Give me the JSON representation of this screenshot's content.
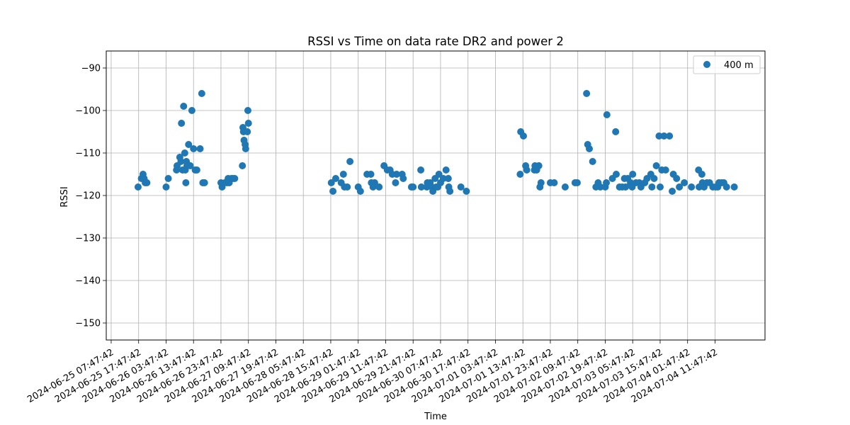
{
  "chart_data": {
    "type": "scatter",
    "title": "RSSI vs Time on data rate DR2 and power 2",
    "xlabel": "Time",
    "ylabel": "RSSI",
    "x_is_date": true,
    "xlim": [
      "2024-06-25T06:00",
      "2024-07-05T06:00"
    ],
    "ylim": [
      -154,
      -86
    ],
    "grid": true,
    "legend_position": "top-right",
    "x_ticks": [
      "2024-06-25 07:47:42",
      "2024-06-25 17:47:42",
      "2024-06-26 03:47:42",
      "2024-06-26 13:47:42",
      "2024-06-26 23:47:42",
      "2024-06-27 09:47:42",
      "2024-06-27 19:47:42",
      "2024-06-28 05:47:42",
      "2024-06-28 15:47:42",
      "2024-06-29 01:47:42",
      "2024-06-29 11:47:42",
      "2024-06-29 21:47:42",
      "2024-06-30 07:47:42",
      "2024-06-30 17:47:42",
      "2024-07-01 03:47:42",
      "2024-07-01 13:47:42",
      "2024-07-01 23:47:42",
      "2024-07-02 09:47:42",
      "2024-07-02 19:47:42",
      "2024-07-03 05:47:42",
      "2024-07-03 15:47:42",
      "2024-07-04 01:47:42",
      "2024-07-04 11:47:42"
    ],
    "y_ticks": [
      -150,
      -140,
      -130,
      -120,
      -110,
      -100,
      -90
    ],
    "y_tick_labels": [
      "−150",
      "−140",
      "−130",
      "−120",
      "−110",
      "−100",
      "−90"
    ],
    "series": [
      {
        "name": "400 m",
        "color": "#1f77b4",
        "marker": "circle",
        "points": [
          [
            "2024-06-25T17:36",
            -118
          ],
          [
            "2024-06-25T18:48",
            -116
          ],
          [
            "2024-06-25T19:24",
            -115
          ],
          [
            "2024-06-25T19:48",
            -116
          ],
          [
            "2024-06-25T20:12",
            -117
          ],
          [
            "2024-06-25T20:48",
            -117
          ],
          [
            "2024-06-26T03:48",
            -118
          ],
          [
            "2024-06-26T04:36",
            -116
          ],
          [
            "2024-06-26T07:36",
            -114
          ],
          [
            "2024-06-26T07:48",
            -113
          ],
          [
            "2024-06-26T08:48",
            -111
          ],
          [
            "2024-06-26T09:12",
            -112
          ],
          [
            "2024-06-26T09:24",
            -103
          ],
          [
            "2024-06-26T09:48",
            -114
          ],
          [
            "2024-06-26T10:12",
            -99
          ],
          [
            "2024-06-26T10:36",
            -110
          ],
          [
            "2024-06-26T10:48",
            -114
          ],
          [
            "2024-06-26T11:00",
            -117
          ],
          [
            "2024-06-26T11:12",
            -112
          ],
          [
            "2024-06-26T11:24",
            -113
          ],
          [
            "2024-06-26T11:36",
            -113
          ],
          [
            "2024-06-26T12:00",
            -108
          ],
          [
            "2024-06-26T12:36",
            -113
          ],
          [
            "2024-06-26T13:12",
            -100
          ],
          [
            "2024-06-26T13:48",
            -109
          ],
          [
            "2024-06-26T14:24",
            -114
          ],
          [
            "2024-06-26T15:00",
            -114
          ],
          [
            "2024-06-26T16:12",
            -109
          ],
          [
            "2024-06-26T16:48",
            -96
          ],
          [
            "2024-06-26T17:12",
            -117
          ],
          [
            "2024-06-26T17:48",
            -117
          ],
          [
            "2024-06-26T23:48",
            -117
          ],
          [
            "2024-06-27T00:12",
            -118
          ],
          [
            "2024-06-27T01:12",
            -117
          ],
          [
            "2024-06-27T02:00",
            -117
          ],
          [
            "2024-06-27T02:24",
            -116
          ],
          [
            "2024-06-27T02:48",
            -117
          ],
          [
            "2024-06-27T03:36",
            -116
          ],
          [
            "2024-06-27T04:12",
            -116
          ],
          [
            "2024-06-27T04:48",
            -116
          ],
          [
            "2024-06-27T07:36",
            -113
          ],
          [
            "2024-06-27T07:48",
            -104
          ],
          [
            "2024-06-27T08:00",
            -105
          ],
          [
            "2024-06-27T08:12",
            -107
          ],
          [
            "2024-06-27T08:36",
            -108
          ],
          [
            "2024-06-27T08:48",
            -109
          ],
          [
            "2024-06-27T09:24",
            -105
          ],
          [
            "2024-06-27T09:36",
            -100
          ],
          [
            "2024-06-27T09:48",
            -103
          ],
          [
            "2024-06-28T16:00",
            -117
          ],
          [
            "2024-06-28T16:36",
            -119
          ],
          [
            "2024-06-28T17:36",
            -116
          ],
          [
            "2024-06-28T19:36",
            -117
          ],
          [
            "2024-06-28T20:24",
            -115
          ],
          [
            "2024-06-28T20:48",
            -118
          ],
          [
            "2024-06-28T21:48",
            -118
          ],
          [
            "2024-06-28T22:48",
            -112
          ],
          [
            "2024-06-29T01:48",
            -118
          ],
          [
            "2024-06-29T02:36",
            -119
          ],
          [
            "2024-06-29T05:00",
            -115
          ],
          [
            "2024-06-29T06:24",
            -115
          ],
          [
            "2024-06-29T06:36",
            -117
          ],
          [
            "2024-06-29T07:12",
            -118
          ],
          [
            "2024-06-29T07:48",
            -117
          ],
          [
            "2024-06-29T09:24",
            -118
          ],
          [
            "2024-06-29T11:12",
            -113
          ],
          [
            "2024-06-29T12:24",
            -114
          ],
          [
            "2024-06-29T13:24",
            -114
          ],
          [
            "2024-06-29T14:12",
            -115
          ],
          [
            "2024-06-29T15:24",
            -117
          ],
          [
            "2024-06-29T15:48",
            -115
          ],
          [
            "2024-06-29T17:48",
            -115
          ],
          [
            "2024-06-29T18:12",
            -116
          ],
          [
            "2024-06-29T21:12",
            -118
          ],
          [
            "2024-06-29T21:48",
            -118
          ],
          [
            "2024-06-30T00:36",
            -114
          ],
          [
            "2024-06-30T00:48",
            -118
          ],
          [
            "2024-06-30T02:48",
            -118
          ],
          [
            "2024-06-30T03:00",
            -117
          ],
          [
            "2024-06-30T04:00",
            -117
          ],
          [
            "2024-06-30T04:36",
            -118
          ],
          [
            "2024-06-30T05:00",
            -119
          ],
          [
            "2024-06-30T05:48",
            -116
          ],
          [
            "2024-06-30T06:12",
            -118
          ],
          [
            "2024-06-30T06:48",
            -118
          ],
          [
            "2024-06-30T07:12",
            -115
          ],
          [
            "2024-06-30T07:48",
            -117
          ],
          [
            "2024-06-30T08:48",
            -116
          ],
          [
            "2024-06-30T09:48",
            -114
          ],
          [
            "2024-06-30T10:36",
            -116
          ],
          [
            "2024-06-30T10:48",
            -118
          ],
          [
            "2024-06-30T11:12",
            -119
          ],
          [
            "2024-06-30T15:12",
            -118
          ],
          [
            "2024-06-30T17:12",
            -119
          ],
          [
            "2024-07-01T12:48",
            -115
          ],
          [
            "2024-07-01T13:00",
            -105
          ],
          [
            "2024-07-01T14:00",
            -106
          ],
          [
            "2024-07-01T14:48",
            -113
          ],
          [
            "2024-07-01T15:12",
            -114
          ],
          [
            "2024-07-01T18:00",
            -114
          ],
          [
            "2024-07-01T18:12",
            -113
          ],
          [
            "2024-07-01T18:48",
            -114
          ],
          [
            "2024-07-01T19:36",
            -113
          ],
          [
            "2024-07-01T20:00",
            -118
          ],
          [
            "2024-07-01T20:24",
            -117
          ],
          [
            "2024-07-01T23:48",
            -117
          ],
          [
            "2024-07-02T01:12",
            -117
          ],
          [
            "2024-07-02T05:12",
            -118
          ],
          [
            "2024-07-02T08:48",
            -117
          ],
          [
            "2024-07-02T09:36",
            -117
          ],
          [
            "2024-07-02T13:00",
            -96
          ],
          [
            "2024-07-02T13:24",
            -108
          ],
          [
            "2024-07-02T14:00",
            -109
          ],
          [
            "2024-07-02T15:12",
            -112
          ],
          [
            "2024-07-02T16:24",
            -118
          ],
          [
            "2024-07-02T17:12",
            -117
          ],
          [
            "2024-07-02T18:00",
            -118
          ],
          [
            "2024-07-02T19:48",
            -118
          ],
          [
            "2024-07-02T20:12",
            -117
          ],
          [
            "2024-07-02T20:24",
            -101
          ],
          [
            "2024-07-02T22:24",
            -116
          ],
          [
            "2024-07-02T23:36",
            -105
          ],
          [
            "2024-07-02T23:48",
            -115
          ],
          [
            "2024-07-03T01:00",
            -118
          ],
          [
            "2024-07-03T02:00",
            -118
          ],
          [
            "2024-07-03T02:48",
            -116
          ],
          [
            "2024-07-03T03:12",
            -118
          ],
          [
            "2024-07-03T04:00",
            -116
          ],
          [
            "2024-07-03T05:00",
            -117
          ],
          [
            "2024-07-03T05:36",
            -118
          ],
          [
            "2024-07-03T05:48",
            -115
          ],
          [
            "2024-07-03T07:00",
            -117
          ],
          [
            "2024-07-03T08:12",
            -117
          ],
          [
            "2024-07-03T08:48",
            -118
          ],
          [
            "2024-07-03T10:12",
            -117
          ],
          [
            "2024-07-03T11:00",
            -116
          ],
          [
            "2024-07-03T12:24",
            -115
          ],
          [
            "2024-07-03T12:48",
            -118
          ],
          [
            "2024-07-03T13:36",
            -116
          ],
          [
            "2024-07-03T14:24",
            -113
          ],
          [
            "2024-07-03T15:24",
            -106
          ],
          [
            "2024-07-03T15:48",
            -118
          ],
          [
            "2024-07-03T16:24",
            -114
          ],
          [
            "2024-07-03T17:12",
            -106
          ],
          [
            "2024-07-03T17:48",
            -114
          ],
          [
            "2024-07-03T19:12",
            -106
          ],
          [
            "2024-07-03T20:12",
            -119
          ],
          [
            "2024-07-03T20:36",
            -115
          ],
          [
            "2024-07-03T21:48",
            -116
          ],
          [
            "2024-07-03T22:48",
            -118
          ],
          [
            "2024-07-04T00:36",
            -117
          ],
          [
            "2024-07-04T03:12",
            -118
          ],
          [
            "2024-07-04T05:48",
            -114
          ],
          [
            "2024-07-04T06:00",
            -118
          ],
          [
            "2024-07-04T07:00",
            -115
          ],
          [
            "2024-07-04T07:12",
            -117
          ],
          [
            "2024-07-04T07:48",
            -118
          ],
          [
            "2024-07-04T08:48",
            -117
          ],
          [
            "2024-07-04T09:48",
            -117
          ],
          [
            "2024-07-04T11:00",
            -118
          ],
          [
            "2024-07-04T12:00",
            -118
          ],
          [
            "2024-07-04T12:48",
            -118
          ],
          [
            "2024-07-04T13:12",
            -117
          ],
          [
            "2024-07-04T14:12",
            -117
          ],
          [
            "2024-07-04T15:00",
            -117
          ],
          [
            "2024-07-04T16:00",
            -118
          ],
          [
            "2024-07-04T18:48",
            -118
          ]
        ]
      }
    ]
  }
}
